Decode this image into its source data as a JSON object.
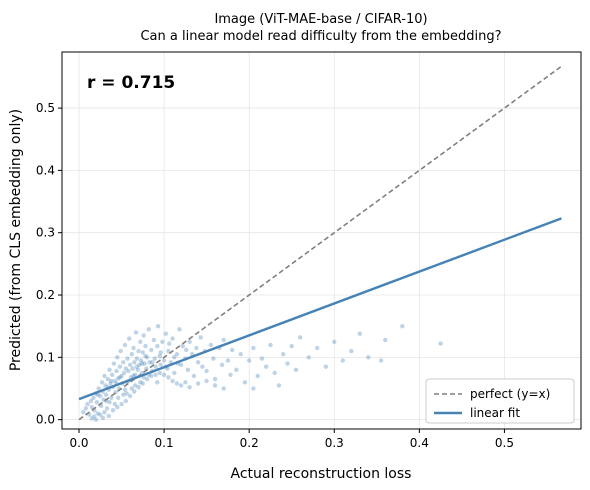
{
  "chart_data": {
    "type": "scatter",
    "title_line1": "Image (ViT-MAE-base / CIFAR-10)",
    "title_line2": "Can a linear model read difficulty from the embedding?",
    "xlabel": "Actual reconstruction loss",
    "ylabel": "Predicted (from CLS embedding only)",
    "xlim": [
      -0.02,
      0.59
    ],
    "ylim": [
      -0.015,
      0.59
    ],
    "xticks": [
      0.0,
      0.1,
      0.2,
      0.3,
      0.4,
      0.5
    ],
    "xtick_labels": [
      "0.0",
      "0.1",
      "0.2",
      "0.3",
      "0.4",
      "0.5"
    ],
    "yticks": [
      0.0,
      0.1,
      0.2,
      0.3,
      0.4,
      0.5
    ],
    "ytick_labels": [
      "0.0",
      "0.1",
      "0.2",
      "0.3",
      "0.4",
      "0.5"
    ],
    "grid": true,
    "annotation": "r = 0.715",
    "legend_position": "lower-right",
    "colors": {
      "points": "#4682b4",
      "fit": "#4682b4",
      "perfect": "#808080"
    },
    "series": [
      {
        "name": "perfect (y=x)",
        "kind": "line",
        "style": "dashed",
        "x": [
          0.0,
          0.567
        ],
        "y": [
          0.0,
          0.567
        ]
      },
      {
        "name": "linear fit",
        "kind": "line",
        "style": "solid",
        "x": [
          0.0,
          0.567
        ],
        "y": [
          0.033,
          0.323
        ]
      },
      {
        "kind": "scatter",
        "points": [
          [
            0.005,
            0.012
          ],
          [
            0.008,
            0.018
          ],
          [
            0.01,
            0.025
          ],
          [
            0.012,
            0.008
          ],
          [
            0.014,
            0.03
          ],
          [
            0.015,
            0.02
          ],
          [
            0.017,
            0.035
          ],
          [
            0.018,
            0.015
          ],
          [
            0.02,
            0.042
          ],
          [
            0.021,
            0.028
          ],
          [
            0.022,
            0.01
          ],
          [
            0.023,
            0.05
          ],
          [
            0.025,
            0.038
          ],
          [
            0.026,
            0.022
          ],
          [
            0.027,
            0.06
          ],
          [
            0.028,
            0.045
          ],
          [
            0.029,
            0.032
          ],
          [
            0.03,
            0.07
          ],
          [
            0.031,
            0.055
          ],
          [
            0.032,
            0.04
          ],
          [
            0.033,
            0.018
          ],
          [
            0.034,
            0.065
          ],
          [
            0.035,
            0.048
          ],
          [
            0.036,
            0.08
          ],
          [
            0.037,
            0.058
          ],
          [
            0.038,
            0.035
          ],
          [
            0.039,
            0.072
          ],
          [
            0.04,
            0.052
          ],
          [
            0.041,
            0.09
          ],
          [
            0.042,
            0.062
          ],
          [
            0.043,
            0.044
          ],
          [
            0.044,
            0.078
          ],
          [
            0.045,
            0.1
          ],
          [
            0.046,
            0.066
          ],
          [
            0.047,
            0.05
          ],
          [
            0.048,
            0.085
          ],
          [
            0.049,
            0.11
          ],
          [
            0.05,
            0.07
          ],
          [
            0.051,
            0.058
          ],
          [
            0.052,
            0.092
          ],
          [
            0.053,
            0.075
          ],
          [
            0.054,
            0.12
          ],
          [
            0.055,
            0.082
          ],
          [
            0.056,
            0.06
          ],
          [
            0.057,
            0.098
          ],
          [
            0.058,
            0.078
          ],
          [
            0.059,
            0.13
          ],
          [
            0.06,
            0.088
          ],
          [
            0.061,
            0.068
          ],
          [
            0.062,
            0.105
          ],
          [
            0.063,
            0.082
          ],
          [
            0.064,
            0.115
          ],
          [
            0.065,
            0.092
          ],
          [
            0.066,
            0.072
          ],
          [
            0.067,
            0.14
          ],
          [
            0.068,
            0.098
          ],
          [
            0.069,
            0.08
          ],
          [
            0.07,
            0.11
          ],
          [
            0.071,
            0.088
          ],
          [
            0.072,
            0.125
          ],
          [
            0.073,
            0.095
          ],
          [
            0.074,
            0.075
          ],
          [
            0.075,
            0.108
          ],
          [
            0.076,
            0.135
          ],
          [
            0.077,
            0.09
          ],
          [
            0.078,
            0.118
          ],
          [
            0.079,
            0.082
          ],
          [
            0.08,
            0.1
          ],
          [
            0.082,
            0.145
          ],
          [
            0.083,
            0.092
          ],
          [
            0.085,
            0.112
          ],
          [
            0.086,
            0.078
          ],
          [
            0.088,
            0.128
          ],
          [
            0.089,
            0.098
          ],
          [
            0.09,
            0.085
          ],
          [
            0.092,
            0.118
          ],
          [
            0.093,
            0.15
          ],
          [
            0.095,
            0.102
          ],
          [
            0.096,
            0.088
          ],
          [
            0.098,
            0.125
          ],
          [
            0.1,
            0.095
          ],
          [
            0.102,
            0.138
          ],
          [
            0.104,
            0.082
          ],
          [
            0.105,
            0.11
          ],
          [
            0.108,
            0.092
          ],
          [
            0.11,
            0.13
          ],
          [
            0.112,
            0.075
          ],
          [
            0.115,
            0.105
          ],
          [
            0.118,
            0.145
          ],
          [
            0.12,
            0.088
          ],
          [
            0.122,
            0.118
          ],
          [
            0.125,
            0.098
          ],
          [
            0.128,
            0.08
          ],
          [
            0.13,
            0.125
          ],
          [
            0.133,
            0.105
          ],
          [
            0.135,
            0.07
          ],
          [
            0.138,
            0.115
          ],
          [
            0.14,
            0.092
          ],
          [
            0.143,
            0.132
          ],
          [
            0.145,
            0.085
          ],
          [
            0.148,
            0.11
          ],
          [
            0.15,
            0.078
          ],
          [
            0.155,
            0.12
          ],
          [
            0.158,
            0.098
          ],
          [
            0.16,
            0.065
          ],
          [
            0.165,
            0.115
          ],
          [
            0.168,
            0.088
          ],
          [
            0.17,
            0.128
          ],
          [
            0.175,
            0.095
          ],
          [
            0.178,
            0.072
          ],
          [
            0.18,
            0.112
          ],
          [
            0.185,
            0.08
          ],
          [
            0.19,
            0.105
          ],
          [
            0.195,
            0.06
          ],
          [
            0.2,
            0.095
          ],
          [
            0.205,
            0.115
          ],
          [
            0.21,
            0.07
          ],
          [
            0.215,
            0.098
          ],
          [
            0.22,
            0.085
          ],
          [
            0.225,
            0.12
          ],
          [
            0.23,
            0.075
          ],
          [
            0.24,
            0.105
          ],
          [
            0.245,
            0.09
          ],
          [
            0.25,
            0.118
          ],
          [
            0.255,
            0.08
          ],
          [
            0.26,
            0.132
          ],
          [
            0.27,
            0.1
          ],
          [
            0.28,
            0.115
          ],
          [
            0.29,
            0.085
          ],
          [
            0.3,
            0.125
          ],
          [
            0.31,
            0.095
          ],
          [
            0.32,
            0.11
          ],
          [
            0.33,
            0.138
          ],
          [
            0.34,
            0.1
          ],
          [
            0.355,
            0.095
          ],
          [
            0.36,
            0.128
          ],
          [
            0.38,
            0.15
          ],
          [
            0.425,
            0.122
          ],
          [
            0.235,
            0.055
          ],
          [
            0.205,
            0.05
          ],
          [
            0.015,
            0.002
          ],
          [
            0.018,
            0.005
          ],
          [
            0.02,
            0.0
          ],
          [
            0.025,
            0.008
          ],
          [
            0.028,
            0.003
          ],
          [
            0.03,
            0.012
          ],
          [
            0.035,
            0.006
          ],
          [
            0.04,
            0.015
          ],
          [
            0.045,
            0.02
          ],
          [
            0.05,
            0.025
          ],
          [
            0.055,
            0.03
          ],
          [
            0.06,
            0.038
          ],
          [
            0.065,
            0.045
          ],
          [
            0.07,
            0.052
          ],
          [
            0.075,
            0.058
          ],
          [
            0.08,
            0.065
          ],
          [
            0.085,
            0.07
          ],
          [
            0.09,
            0.072
          ],
          [
            0.095,
            0.075
          ],
          [
            0.1,
            0.072
          ],
          [
            0.105,
            0.068
          ],
          [
            0.11,
            0.062
          ],
          [
            0.115,
            0.058
          ],
          [
            0.12,
            0.055
          ],
          [
            0.125,
            0.06
          ],
          [
            0.13,
            0.052
          ],
          [
            0.14,
            0.058
          ],
          [
            0.15,
            0.062
          ],
          [
            0.16,
            0.055
          ],
          [
            0.17,
            0.05
          ],
          [
            0.022,
            0.04
          ],
          [
            0.032,
            0.03
          ],
          [
            0.042,
            0.025
          ],
          [
            0.052,
            0.04
          ],
          [
            0.062,
            0.05
          ],
          [
            0.072,
            0.06
          ],
          [
            0.082,
            0.072
          ],
          [
            0.092,
            0.06
          ],
          [
            0.102,
            0.085
          ],
          [
            0.112,
            0.1
          ],
          [
            0.034,
            0.052
          ],
          [
            0.038,
            0.062
          ],
          [
            0.044,
            0.058
          ],
          [
            0.048,
            0.068
          ],
          [
            0.054,
            0.048
          ],
          [
            0.058,
            0.062
          ],
          [
            0.064,
            0.07
          ],
          [
            0.068,
            0.085
          ],
          [
            0.074,
            0.09
          ],
          [
            0.078,
            0.102
          ],
          [
            0.036,
            0.028
          ],
          [
            0.046,
            0.035
          ],
          [
            0.056,
            0.042
          ],
          [
            0.066,
            0.055
          ],
          [
            0.076,
            0.068
          ],
          [
            0.086,
            0.092
          ],
          [
            0.096,
            0.108
          ],
          [
            0.106,
            0.122
          ],
          [
            0.116,
            0.09
          ],
          [
            0.126,
            0.112
          ]
        ]
      }
    ]
  }
}
